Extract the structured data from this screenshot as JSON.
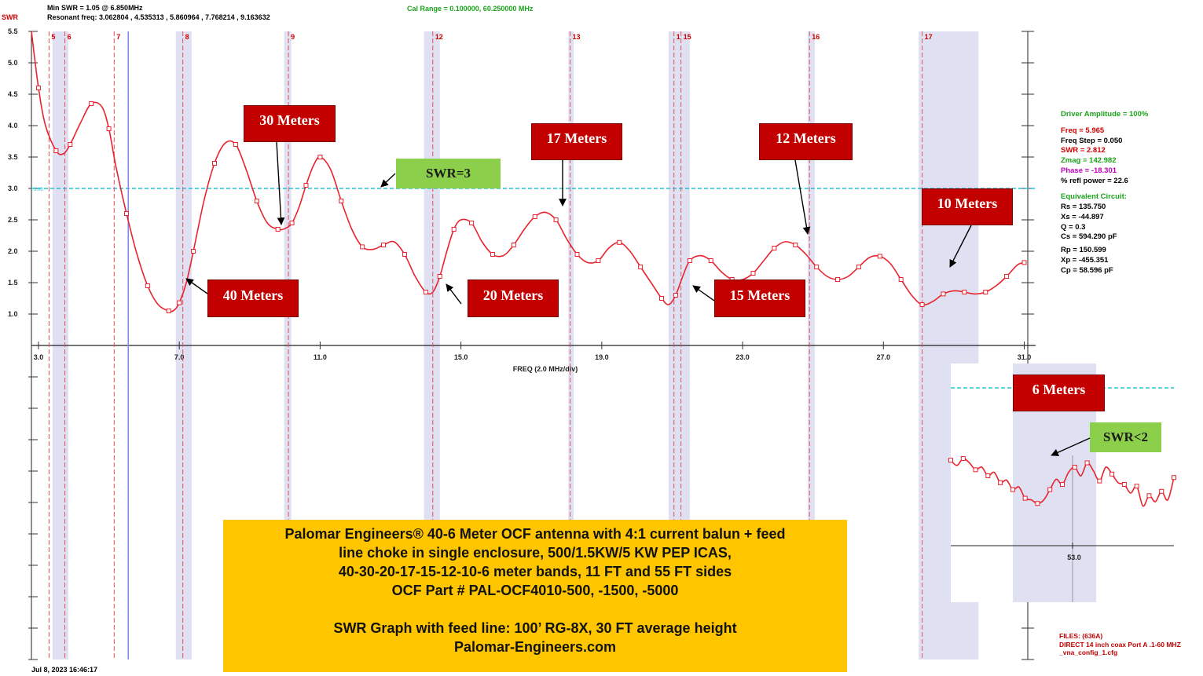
{
  "header": {
    "swr_tag": "SWR",
    "min_swr": "Min SWR =   1.05 @  6.850MHz",
    "resonant": "Resonant freq:  3.062804 , 4.535313 , 5.860964 , 7.768214 , 9.163632",
    "cal_range": "Cal Range = 0.100000,  60.250000 MHz"
  },
  "chart_data": {
    "type": "line",
    "xlabel": "FREQ (2.0 MHz/div)",
    "ylabel": "SWR",
    "xlim": [
      2.8,
      31.1
    ],
    "ylim": [
      0.5,
      5.5
    ],
    "x_ticks": [
      "3.0",
      "7.0",
      "11.0",
      "15.0",
      "19.0",
      "23.0",
      "27.0",
      "31.0"
    ],
    "y_ticks": [
      "1.0",
      "1.5",
      "2.0",
      "2.5",
      "3.0",
      "3.5",
      "4.0",
      "4.5",
      "5.0",
      "5.5"
    ],
    "reference_line": {
      "y": 3.0,
      "label": "3.00"
    },
    "bands": [
      [
        3.4,
        3.85
      ],
      [
        6.9,
        7.35
      ],
      [
        9.98,
        10.18
      ],
      [
        13.95,
        14.4
      ],
      [
        18.05,
        18.2
      ],
      [
        20.9,
        21.5
      ],
      [
        24.85,
        25.05
      ],
      [
        28.0,
        29.7
      ]
    ],
    "markers": [
      {
        "x": 3.3,
        "label": "5"
      },
      {
        "x": 3.75,
        "label": "6"
      },
      {
        "x": 5.15,
        "label": "7"
      },
      {
        "x": 7.1,
        "label": "8"
      },
      {
        "x": 10.1,
        "label": "9"
      },
      {
        "x": 14.2,
        "label": "12"
      },
      {
        "x": 18.1,
        "label": "13"
      },
      {
        "x": 21.05,
        "label": "1"
      },
      {
        "x": 21.25,
        "label": "15"
      },
      {
        "x": 24.9,
        "label": "16"
      },
      {
        "x": 28.1,
        "label": "17"
      }
    ],
    "cursor_x": 5.55,
    "series": [
      {
        "color": "#e8232e",
        "x": [
          2.8,
          3.0,
          3.2,
          3.5,
          3.7,
          3.9,
          4.2,
          4.5,
          4.8,
          5.0,
          5.2,
          5.5,
          5.8,
          6.1,
          6.4,
          6.7,
          6.85,
          7.0,
          7.2,
          7.4,
          7.7,
          8.0,
          8.3,
          8.6,
          8.9,
          9.2,
          9.5,
          9.8,
          10.0,
          10.2,
          10.4,
          10.6,
          10.8,
          11.0,
          11.3,
          11.6,
          11.9,
          12.2,
          12.5,
          12.8,
          13.1,
          13.4,
          13.7,
          14.0,
          14.2,
          14.4,
          14.6,
          14.8,
          15.0,
          15.3,
          15.6,
          15.9,
          16.2,
          16.5,
          16.8,
          17.1,
          17.4,
          17.7,
          18.0,
          18.3,
          18.6,
          18.9,
          19.2,
          19.5,
          19.8,
          20.1,
          20.4,
          20.7,
          20.9,
          21.1,
          21.3,
          21.5,
          21.8,
          22.1,
          22.4,
          22.7,
          23.0,
          23.3,
          23.6,
          23.9,
          24.2,
          24.5,
          24.8,
          25.1,
          25.4,
          25.7,
          26.0,
          26.3,
          26.6,
          26.9,
          27.2,
          27.5,
          27.8,
          28.1,
          28.4,
          28.7,
          29.0,
          29.3,
          29.6,
          29.9,
          30.2,
          30.5,
          30.8,
          31.0
        ],
        "values": [
          5.5,
          4.6,
          4.0,
          3.6,
          3.55,
          3.7,
          4.05,
          4.35,
          4.3,
          3.95,
          3.35,
          2.6,
          1.95,
          1.45,
          1.15,
          1.05,
          1.06,
          1.18,
          1.5,
          2.0,
          2.8,
          3.4,
          3.72,
          3.7,
          3.3,
          2.8,
          2.45,
          2.35,
          2.36,
          2.45,
          2.7,
          3.05,
          3.35,
          3.5,
          3.3,
          2.8,
          2.35,
          2.07,
          2.03,
          2.1,
          2.15,
          1.95,
          1.6,
          1.35,
          1.35,
          1.6,
          2.0,
          2.35,
          2.5,
          2.45,
          2.15,
          1.95,
          1.93,
          2.1,
          2.35,
          2.55,
          2.62,
          2.5,
          2.2,
          1.95,
          1.82,
          1.85,
          2.05,
          2.14,
          2.0,
          1.75,
          1.5,
          1.25,
          1.15,
          1.3,
          1.6,
          1.85,
          1.93,
          1.85,
          1.67,
          1.55,
          1.55,
          1.65,
          1.85,
          2.05,
          2.15,
          2.1,
          1.95,
          1.75,
          1.6,
          1.55,
          1.6,
          1.75,
          1.9,
          1.92,
          1.8,
          1.55,
          1.3,
          1.15,
          1.2,
          1.32,
          1.37,
          1.35,
          1.32,
          1.35,
          1.45,
          1.6,
          1.78,
          1.82
        ]
      }
    ]
  },
  "inset": {
    "tick": "53.0",
    "trace": [
      0.58,
      0.52,
      0.6,
      0.55,
      0.47,
      0.5,
      0.4,
      0.44,
      0.32,
      0.35,
      0.24,
      0.27,
      0.14,
      0.12,
      0.08,
      0.12,
      0.24,
      0.36,
      0.3,
      0.44,
      0.5,
      0.4,
      0.55,
      0.46,
      0.34,
      0.5,
      0.42,
      0.32,
      0.3,
      0.2,
      0.28,
      0.05,
      0.17,
      0.1,
      0.22,
      0.12,
      0.38
    ],
    "label_6m": "6 Meters",
    "label_swr2": "SWR<2"
  },
  "annotations": {
    "m30": "30 Meters",
    "m17": "17 Meters",
    "m12": "12 Meters",
    "m10": "10 Meters",
    "m40": "40 Meters",
    "m20": "20 Meters",
    "m15": "15 Meters",
    "swr3": "SWR=3"
  },
  "info_panel": {
    "driver": "Driver Amplitude = 100%",
    "freq": "Freq = 5.965",
    "freq_step": "Freq Step = 0.050",
    "swr": "SWR =   2.812",
    "zmag": "Zmag =  142.982",
    "phase": "Phase =  -18.301",
    "refl": "% refl power = 22.6",
    "eq_title": "Equivalent Circuit:",
    "rs": "Rs =  135.750",
    "xs": "Xs =  -44.897",
    "q": "Q =  0.3",
    "cs": "Cs =  594.290  pF",
    "rp": "Rp =  150.599",
    "xp": "Xp =  -455.351",
    "cp": "Cp =   58.596  pF",
    "colors": {
      "driver": "#1aa31a",
      "freq": "#d00000",
      "zmag": "#1aa31a",
      "phase": "#c000c0",
      "swr": "#d00000"
    }
  },
  "note": {
    "line1": "Palomar Engineers® 40-6 Meter OCF antenna with 4:1 current balun + feed",
    "line2": "line choke in single enclosure, 500/1.5KW/5 KW PEP ICAS,",
    "line3": "40-30-20-17-15-12-10-6 meter bands, 11 FT and 55 FT sides",
    "line4": "OCF Part # PAL-OCF4010-500, -1500, -5000",
    "line5": "SWR Graph with feed line: 100’ RG-8X, 30 FT average height",
    "line6": "Palomar-Engineers.com"
  },
  "files": {
    "line1": "FILES: (636A)",
    "line2": "DIRECT 14 inch coax Port A .1-60 MHZ",
    "line3": "_vna_config_1.cfg"
  },
  "datestamp": "Jul 8, 2023  16:46:17"
}
